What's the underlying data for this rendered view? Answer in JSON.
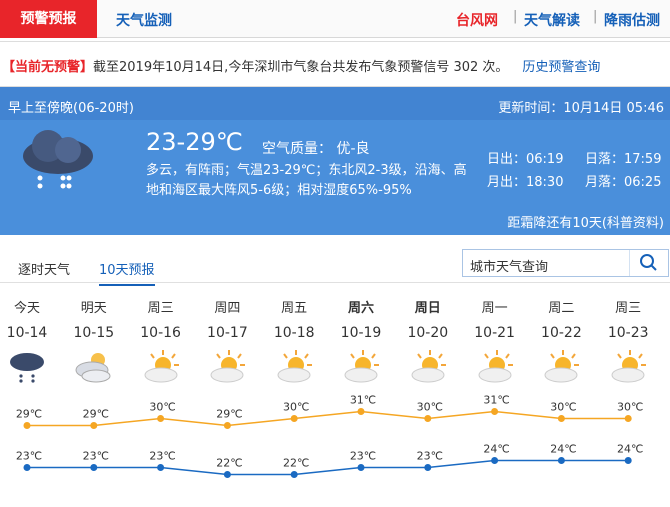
{
  "nav": {
    "tabs": [
      "预警预报",
      "天气监测"
    ],
    "links": [
      "台风网",
      "天气解读",
      "降雨估测"
    ]
  },
  "warning": {
    "status": "【当前无预警】",
    "text": "截至2019年10月14日,今年深圳市气象台共发布气象预警信号 302 次。",
    "link": "历史预警查询"
  },
  "today": {
    "period": "早上至傍晚(06-20时)",
    "update": "更新时间：10月14日 05:46",
    "temp": "23-29℃",
    "air": "空气质量： 优-良",
    "description": "多云，有阵雨；气温23-29℃；东北风2-3级，沿海、高地和海区最大阵风5-6级；相对湿度65%-95%",
    "sunrise": "日出：06:19",
    "sunset": "日落：17:59",
    "moonrise": "月出：18:30",
    "moonset": "月落：06:25",
    "term_note": "距霜降还有10天(科普资料)"
  },
  "tabs": [
    "逐时天气",
    "10天预报"
  ],
  "search_placeholder": "城市天气查询",
  "forecast": {
    "days": [
      "今天",
      "明天",
      "周三",
      "周四",
      "周五",
      "周六",
      "周日",
      "周一",
      "周二",
      "周三"
    ],
    "dates": [
      "10-14",
      "10-15",
      "10-16",
      "10-17",
      "10-18",
      "10-19",
      "10-20",
      "10-21",
      "10-22",
      "10-23"
    ],
    "highs": {
      "color": "#f5a623",
      "values": [
        29,
        29,
        30,
        29,
        30,
        31,
        30,
        31,
        30,
        30
      ],
      "value_labels": [
        "29℃",
        "29℃",
        "30℃",
        "29℃",
        "30℃",
        "31℃",
        "30℃",
        "31℃",
        "30℃",
        "30℃"
      ]
    },
    "lows": {
      "color": "#1a6ac2",
      "values": [
        23,
        23,
        23,
        22,
        22,
        23,
        23,
        24,
        24,
        24
      ],
      "value_labels": [
        "23℃",
        "23℃",
        "23℃",
        "22℃",
        "22℃",
        "23℃",
        "23℃",
        "24℃",
        "24℃",
        "24℃"
      ]
    }
  }
}
